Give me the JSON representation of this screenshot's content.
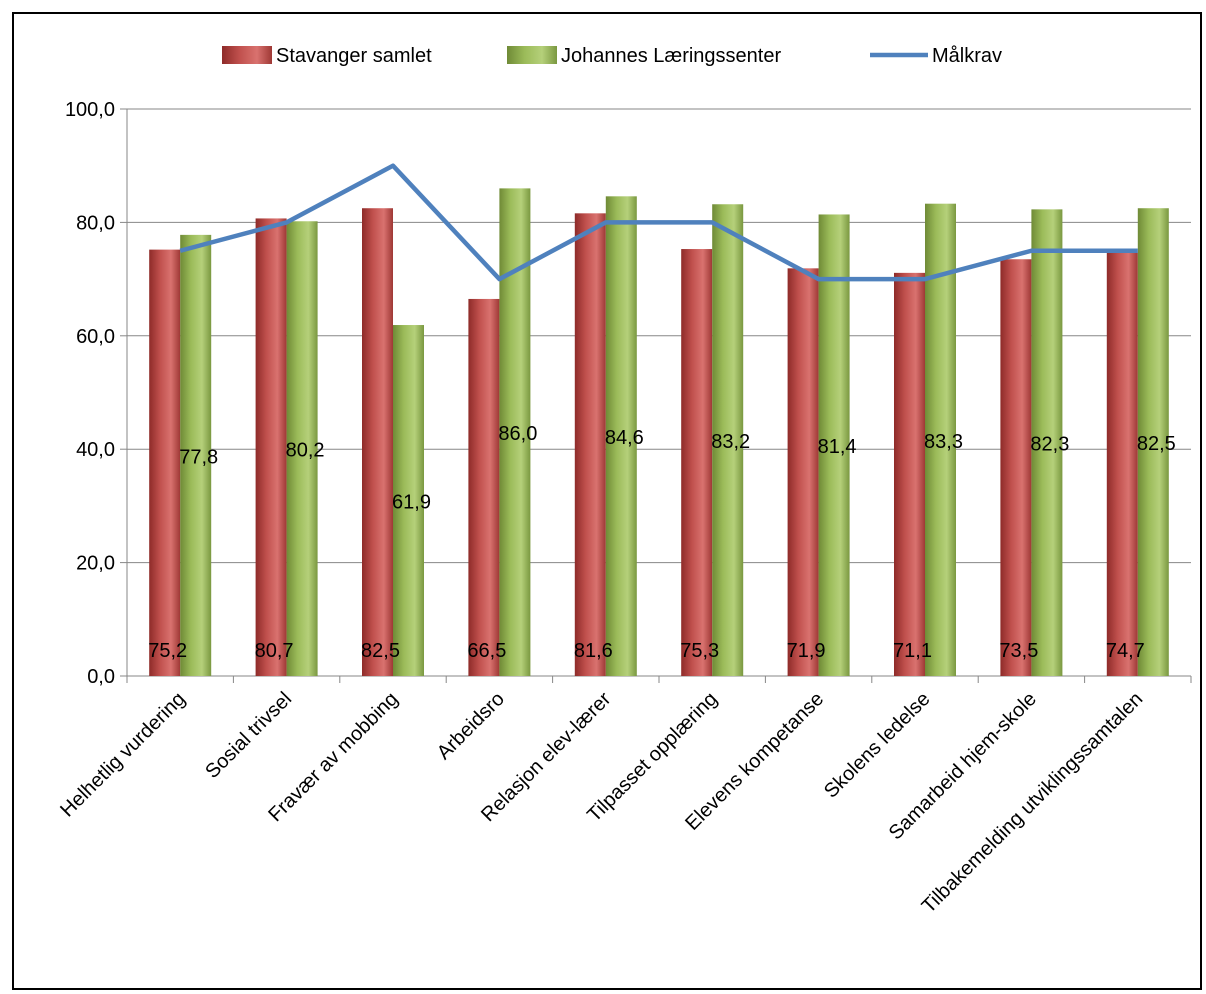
{
  "chart_data": {
    "type": "bar",
    "categories": [
      "Helhetlig vurdering",
      "Sosial trivsel",
      "Fravær av mobbing",
      "Arbeidsro",
      "Relasjon elev-lærer",
      "Tilpasset opplæring",
      "Elevens kompetanse",
      "Skolens ledelse",
      "Samarbeid hjem-skole",
      "Tilbakemelding utviklingssamtalen"
    ],
    "series": [
      {
        "name": "Stavanger samlet",
        "type": "bar",
        "color": "#c0504d",
        "values": [
          75.2,
          80.7,
          82.5,
          66.5,
          81.6,
          75.3,
          71.9,
          71.1,
          73.5,
          74.7
        ],
        "labels": [
          "75,2",
          "80,7",
          "82,5",
          "66,5",
          "81,6",
          "75,3",
          "71,9",
          "71,1",
          "73,5",
          "74,7"
        ]
      },
      {
        "name": "Johannes Læringssenter",
        "type": "bar",
        "color": "#9bbb59",
        "values": [
          77.8,
          80.2,
          61.9,
          86.0,
          84.6,
          83.2,
          81.4,
          83.3,
          82.3,
          82.5
        ],
        "labels": [
          "77,8",
          "80,2",
          "61,9",
          "86,0",
          "84,6",
          "83,2",
          "81,4",
          "83,3",
          "82,3",
          "82,5"
        ]
      },
      {
        "name": "Målkrav",
        "type": "line",
        "color": "#4f81bd",
        "values": [
          75,
          80,
          90,
          70,
          80,
          80,
          70,
          70,
          75,
          75
        ]
      }
    ],
    "ylim": [
      0,
      100
    ],
    "yticks": [
      "0,0",
      "20,0",
      "40,0",
      "60,0",
      "80,0",
      "100,0"
    ],
    "grid": true,
    "legend_position": "top"
  }
}
